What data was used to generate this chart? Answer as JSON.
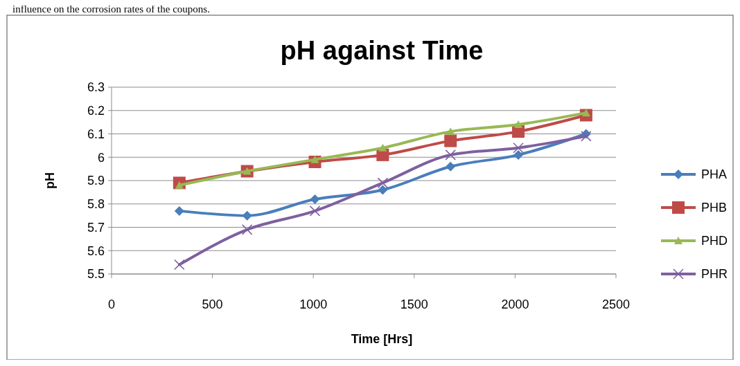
{
  "chart_data": {
    "type": "line",
    "title": "pH against Time",
    "xlabel": "Time [Hrs]",
    "ylabel": "pH",
    "annotations": [
      "influence on the corrosion rates of the coupons."
    ],
    "x": [
      336,
      672,
      1008,
      1344,
      1680,
      2016,
      2352
    ],
    "series": [
      {
        "name": "PHA",
        "color": "#4a7ebb",
        "marker": "diamond",
        "values": [
          5.77,
          5.75,
          5.82,
          5.86,
          5.96,
          6.01,
          6.1
        ]
      },
      {
        "name": "PHB",
        "color": "#be4b48",
        "marker": "square",
        "values": [
          5.89,
          5.94,
          5.98,
          6.01,
          6.07,
          6.11,
          6.18
        ]
      },
      {
        "name": "PHD",
        "color": "#98b954",
        "marker": "triangle",
        "values": [
          5.88,
          5.94,
          5.99,
          6.04,
          6.11,
          6.14,
          6.19
        ]
      },
      {
        "name": "PHR",
        "color": "#7d60a0",
        "marker": "cross",
        "values": [
          5.54,
          5.69,
          5.77,
          5.89,
          6.01,
          6.04,
          6.09
        ]
      }
    ],
    "xlim": [
      0,
      2500
    ],
    "xticks": [
      0,
      500,
      1000,
      1500,
      2000,
      2500
    ],
    "ylim": [
      5.5,
      6.3
    ],
    "yticks": [
      5.5,
      5.6,
      5.7,
      5.8,
      5.9,
      6,
      6.1,
      6.2,
      6.3
    ],
    "grid": "y",
    "legend": "right",
    "line_style": "solid"
  }
}
